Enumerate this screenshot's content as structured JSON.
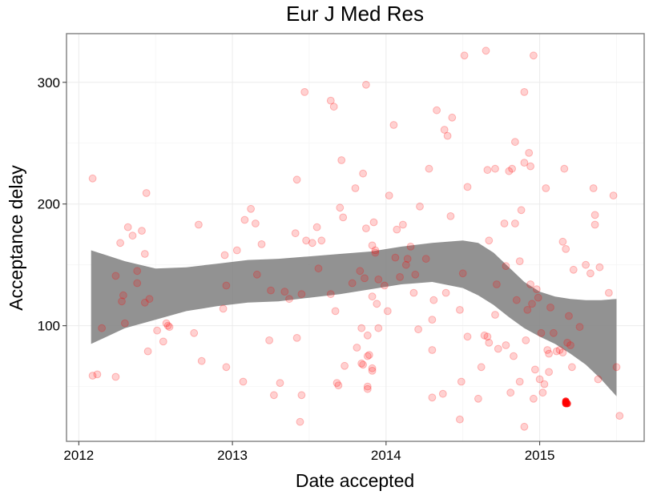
{
  "chart_data": {
    "type": "scatter",
    "title": "Eur J Med Res",
    "xlabel": "Date accepted",
    "ylabel": "Acceptance delay",
    "x_ticks": [
      "2012",
      "2013",
      "2014",
      "2015"
    ],
    "y_ticks": [
      "100",
      "200",
      "300"
    ],
    "xlim": [
      2011.92,
      2015.68
    ],
    "ylim": [
      5,
      340
    ],
    "grid": true,
    "legend": "none",
    "colors": {
      "points": "#ff0000",
      "point_alpha": 0.18,
      "highlight_alpha": 0.85,
      "band": "#7f7f7f",
      "band_alpha": 0.85,
      "grid": "#ebebeb",
      "panel_border": "#7f7f7f"
    },
    "points": [
      [
        2012.09,
        221
      ],
      [
        2012.09,
        59
      ],
      [
        2012.12,
        60
      ],
      [
        2012.15,
        98
      ],
      [
        2012.24,
        141
      ],
      [
        2012.24,
        58
      ],
      [
        2012.27,
        168
      ],
      [
        2012.28,
        120
      ],
      [
        2012.29,
        125
      ],
      [
        2012.3,
        102
      ],
      [
        2012.32,
        181
      ],
      [
        2012.35,
        174
      ],
      [
        2012.38,
        135
      ],
      [
        2012.38,
        145
      ],
      [
        2012.41,
        178
      ],
      [
        2012.43,
        119
      ],
      [
        2012.43,
        159
      ],
      [
        2012.44,
        209
      ],
      [
        2012.45,
        79
      ],
      [
        2012.46,
        122
      ],
      [
        2012.51,
        96
      ],
      [
        2012.55,
        87
      ],
      [
        2012.57,
        102
      ],
      [
        2012.58,
        100
      ],
      [
        2012.59,
        99
      ],
      [
        2012.75,
        94
      ],
      [
        2012.78,
        183
      ],
      [
        2012.8,
        71
      ],
      [
        2012.94,
        114
      ],
      [
        2012.95,
        158
      ],
      [
        2012.96,
        66
      ],
      [
        2012.96,
        133
      ],
      [
        2013.03,
        162
      ],
      [
        2013.07,
        54
      ],
      [
        2013.08,
        187
      ],
      [
        2013.12,
        196
      ],
      [
        2013.15,
        184
      ],
      [
        2013.16,
        142
      ],
      [
        2013.19,
        167
      ],
      [
        2013.24,
        88
      ],
      [
        2013.25,
        129
      ],
      [
        2013.27,
        43
      ],
      [
        2013.31,
        53
      ],
      [
        2013.34,
        128
      ],
      [
        2013.37,
        122
      ],
      [
        2013.41,
        176
      ],
      [
        2013.42,
        90
      ],
      [
        2013.42,
        220
      ],
      [
        2013.44,
        21
      ],
      [
        2013.45,
        43
      ],
      [
        2013.45,
        126
      ],
      [
        2013.47,
        292
      ],
      [
        2013.48,
        170
      ],
      [
        2013.52,
        168
      ],
      [
        2013.55,
        181
      ],
      [
        2013.56,
        147
      ],
      [
        2013.58,
        170
      ],
      [
        2013.64,
        126
      ],
      [
        2013.64,
        285
      ],
      [
        2013.66,
        280
      ],
      [
        2013.67,
        112
      ],
      [
        2013.68,
        53
      ],
      [
        2013.69,
        51
      ],
      [
        2013.7,
        197
      ],
      [
        2013.71,
        236
      ],
      [
        2013.72,
        189
      ],
      [
        2013.73,
        67
      ],
      [
        2013.78,
        135
      ],
      [
        2013.8,
        213
      ],
      [
        2013.81,
        82
      ],
      [
        2013.83,
        145
      ],
      [
        2013.84,
        98
      ],
      [
        2013.84,
        69
      ],
      [
        2013.85,
        68
      ],
      [
        2013.85,
        225
      ],
      [
        2013.86,
        139
      ],
      [
        2013.87,
        298
      ],
      [
        2013.87,
        180
      ],
      [
        2013.88,
        48
      ],
      [
        2013.88,
        75
      ],
      [
        2013.88,
        92
      ],
      [
        2013.88,
        50
      ],
      [
        2013.89,
        76
      ],
      [
        2013.91,
        63
      ],
      [
        2013.91,
        65
      ],
      [
        2013.91,
        166
      ],
      [
        2013.91,
        124
      ],
      [
        2013.92,
        185
      ],
      [
        2013.93,
        162
      ],
      [
        2013.93,
        160
      ],
      [
        2013.94,
        118
      ],
      [
        2013.95,
        138
      ],
      [
        2013.99,
        133
      ],
      [
        2014.01,
        112
      ],
      [
        2014.02,
        207
      ],
      [
        2014.05,
        265
      ],
      [
        2014.06,
        156
      ],
      [
        2014.07,
        179
      ],
      [
        2014.09,
        140
      ],
      [
        2014.11,
        183
      ],
      [
        2014.13,
        150
      ],
      [
        2014.14,
        155
      ],
      [
        2014.16,
        165
      ],
      [
        2014.18,
        127
      ],
      [
        2014.19,
        142
      ],
      [
        2014.21,
        97
      ],
      [
        2014.22,
        198
      ],
      [
        2014.26,
        155
      ],
      [
        2014.28,
        229
      ],
      [
        2014.3,
        105
      ],
      [
        2014.3,
        80
      ],
      [
        2014.3,
        41
      ],
      [
        2014.31,
        121
      ],
      [
        2014.33,
        277
      ],
      [
        2014.37,
        44
      ],
      [
        2014.38,
        261
      ],
      [
        2014.39,
        127
      ],
      [
        2014.4,
        256
      ],
      [
        2014.42,
        190
      ],
      [
        2014.43,
        271
      ],
      [
        2014.48,
        23
      ],
      [
        2014.49,
        54
      ],
      [
        2014.5,
        143
      ],
      [
        2014.51,
        322
      ],
      [
        2014.53,
        214
      ],
      [
        2014.53,
        91
      ],
      [
        2014.6,
        40
      ],
      [
        2014.62,
        66
      ],
      [
        2014.64,
        92
      ],
      [
        2014.65,
        326
      ],
      [
        2014.66,
        228
      ],
      [
        2014.66,
        91
      ],
      [
        2014.67,
        86
      ],
      [
        2014.67,
        170
      ],
      [
        2014.71,
        229
      ],
      [
        2014.71,
        109
      ],
      [
        2014.72,
        134
      ],
      [
        2014.77,
        184
      ],
      [
        2014.78,
        149
      ],
      [
        2014.78,
        84
      ],
      [
        2014.8,
        227
      ],
      [
        2014.81,
        45
      ],
      [
        2014.82,
        229
      ],
      [
        2014.83,
        75
      ],
      [
        2014.84,
        184
      ],
      [
        2014.84,
        251
      ],
      [
        2014.85,
        121
      ],
      [
        2014.87,
        54
      ],
      [
        2014.87,
        153
      ],
      [
        2014.88,
        195
      ],
      [
        2014.9,
        17
      ],
      [
        2014.9,
        234
      ],
      [
        2014.9,
        292
      ],
      [
        2014.91,
        88
      ],
      [
        2014.92,
        113
      ],
      [
        2014.93,
        242
      ],
      [
        2014.94,
        134
      ],
      [
        2014.94,
        231
      ],
      [
        2014.95,
        118
      ],
      [
        2014.96,
        322
      ],
      [
        2014.96,
        40
      ],
      [
        2014.97,
        64
      ],
      [
        2014.98,
        130
      ],
      [
        2014.99,
        123
      ],
      [
        2015.01,
        94
      ],
      [
        2015.02,
        45
      ],
      [
        2015.03,
        52
      ],
      [
        2015.04,
        213
      ],
      [
        2015.05,
        80
      ],
      [
        2015.06,
        62
      ],
      [
        2015.07,
        115
      ],
      [
        2015.09,
        94
      ],
      [
        2015.11,
        79
      ],
      [
        2015.13,
        80
      ],
      [
        2015.15,
        169
      ],
      [
        2015.16,
        229
      ],
      [
        2015.17,
        163
      ],
      [
        2015.18,
        86
      ],
      [
        2015.19,
        108
      ],
      [
        2015.2,
        84
      ],
      [
        2015.21,
        66
      ],
      [
        2015.22,
        146
      ],
      [
        2015.26,
        99
      ],
      [
        2015.3,
        150
      ],
      [
        2015.33,
        143
      ],
      [
        2015.35,
        213
      ],
      [
        2015.36,
        191
      ],
      [
        2015.38,
        56
      ],
      [
        2015.39,
        148
      ],
      [
        2015.45,
        127
      ],
      [
        2015.48,
        207
      ],
      [
        2015.5,
        66
      ],
      [
        2015.52,
        26
      ],
      [
        2015.36,
        183
      ],
      [
        2015.15,
        78
      ],
      [
        2015.06,
        77
      ],
      [
        2015.0,
        56
      ],
      [
        2014.73,
        81
      ],
      [
        2014.48,
        113
      ],
      [
        2013.95,
        98
      ]
    ],
    "highlight_points": [
      [
        2015.17,
        36
      ],
      [
        2015.17,
        37
      ],
      [
        2015.18,
        36
      ],
      [
        2015.17,
        38
      ]
    ],
    "smooth_band": {
      "x": [
        2012.08,
        2012.3,
        2012.5,
        2012.7,
        2012.9,
        2013.1,
        2013.3,
        2013.5,
        2013.7,
        2013.9,
        2014.1,
        2014.3,
        2014.5,
        2014.6,
        2014.7,
        2014.8,
        2014.9,
        2015.0,
        2015.1,
        2015.2,
        2015.3,
        2015.4,
        2015.5
      ],
      "upper": [
        162,
        153,
        147,
        148,
        151,
        154,
        155,
        157,
        159,
        161,
        165,
        168,
        170,
        168,
        160,
        148,
        136,
        128,
        124,
        122,
        121,
        121,
        122
      ],
      "lower": [
        85,
        98,
        105,
        112,
        116,
        119,
        120,
        123,
        126,
        130,
        134,
        136,
        131,
        125,
        117,
        107,
        98,
        91,
        85,
        77,
        68,
        56,
        42
      ]
    }
  }
}
